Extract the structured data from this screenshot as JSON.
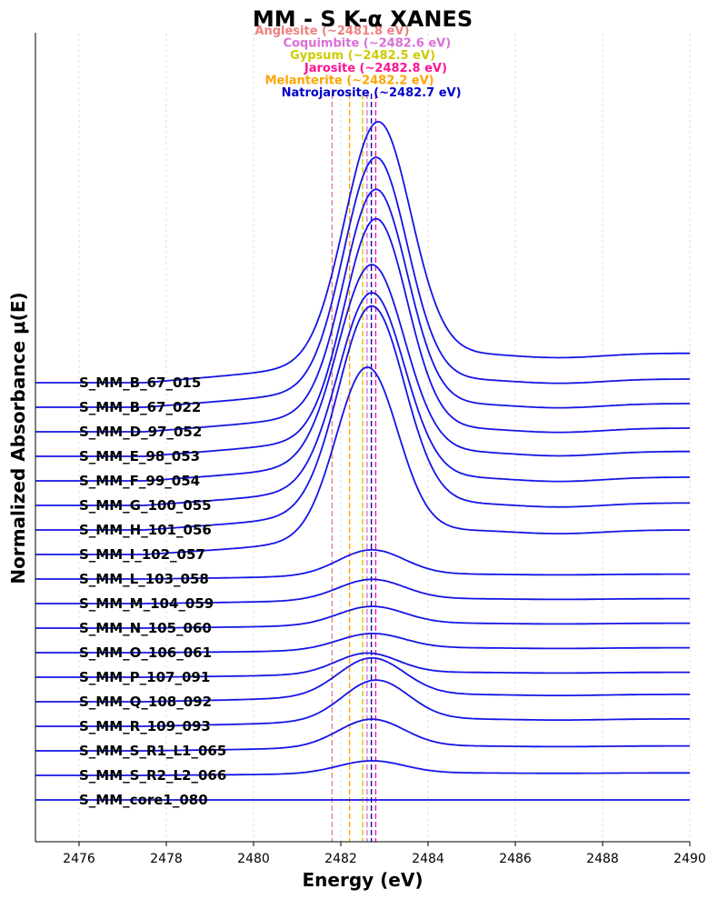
{
  "chart_data": {
    "type": "line",
    "title": "MM - S K-α XANES",
    "xlabel": "Energy (eV)",
    "ylabel": "Normalized Absorbance μ(E)",
    "xlim": [
      2475,
      2490
    ],
    "xticks": [
      2476,
      2478,
      2480,
      2482,
      2484,
      2486,
      2488,
      2490
    ],
    "grid": "vertical",
    "line_color": "#1515e6",
    "reference_lines": [
      {
        "label": "Anglesite (~2481.8 eV)",
        "energy": 2481.8,
        "color": "#f08080"
      },
      {
        "label": "Coquimbite (~2482.6 eV)",
        "energy": 2482.6,
        "color": "#da70d6"
      },
      {
        "label": "Gypsum (~2482.5 eV)",
        "energy": 2482.5,
        "color": "#cccc00"
      },
      {
        "label": "Jarosite (~2482.8 eV)",
        "energy": 2482.8,
        "color": "#ff1493"
      },
      {
        "label": "Melanterite (~2482.2 eV)",
        "energy": 2482.2,
        "color": "#ffa500"
      },
      {
        "label": "Natrojarosite (~2482.7 eV)",
        "energy": 2482.7,
        "color": "#0000cd"
      }
    ],
    "series": [
      {
        "name": "S_MM_B_67_015",
        "offset": 16,
        "peak": 9.5,
        "center": 2482.85,
        "width": 0.75,
        "pre": 0.6,
        "post": 1.2
      },
      {
        "name": "S_MM_B_67_022",
        "offset": 15,
        "peak": 9.1,
        "center": 2482.8,
        "width": 0.72,
        "pre": 0.55,
        "post": 1.15
      },
      {
        "name": "S_MM_D_97_052",
        "offset": 14,
        "peak": 8.8,
        "center": 2482.8,
        "width": 0.72,
        "pre": 0.55,
        "post": 1.15
      },
      {
        "name": "S_MM_E_98_053",
        "offset": 13,
        "peak": 8.6,
        "center": 2482.8,
        "width": 0.72,
        "pre": 0.55,
        "post": 1.15
      },
      {
        "name": "S_MM_F_99_054",
        "offset": 12,
        "peak": 7.7,
        "center": 2482.7,
        "width": 0.75,
        "pre": 0.5,
        "post": 1.2
      },
      {
        "name": "S_MM_G_100_055",
        "offset": 11,
        "peak": 7.6,
        "center": 2482.7,
        "width": 0.75,
        "pre": 0.5,
        "post": 1.15
      },
      {
        "name": "S_MM_H_101_056",
        "offset": 10,
        "peak": 8.1,
        "center": 2482.7,
        "width": 0.75,
        "pre": 0.5,
        "post": 1.1
      },
      {
        "name": "S_MM_I_102_057",
        "offset": 9,
        "peak": 6.7,
        "center": 2482.6,
        "width": 0.7,
        "pre": 0.45,
        "post": 1.0
      },
      {
        "name": "S_MM_L_103_058",
        "offset": 8,
        "peak": 1.0,
        "center": 2482.7,
        "width": 0.75,
        "pre": 0.1,
        "post": 0.2
      },
      {
        "name": "S_MM_M_104_059",
        "offset": 7,
        "peak": 0.8,
        "center": 2482.7,
        "width": 0.75,
        "pre": 0.1,
        "post": 0.2
      },
      {
        "name": "S_MM_N_105_060",
        "offset": 6,
        "peak": 0.7,
        "center": 2482.7,
        "width": 0.75,
        "pre": 0.08,
        "post": 0.2
      },
      {
        "name": "S_MM_O_106_061",
        "offset": 5,
        "peak": 0.6,
        "center": 2482.7,
        "width": 0.75,
        "pre": 0.06,
        "post": 0.2
      },
      {
        "name": "S_MM_P_107_091",
        "offset": 4,
        "peak": 0.8,
        "center": 2482.6,
        "width": 0.7,
        "pre": 0.08,
        "post": 0.2
      },
      {
        "name": "S_MM_Q_108_092",
        "offset": 3,
        "peak": 1.5,
        "center": 2482.7,
        "width": 0.75,
        "pre": 0.15,
        "post": 0.3
      },
      {
        "name": "S_MM_R_109_093",
        "offset": 2,
        "peak": 1.6,
        "center": 2482.8,
        "width": 0.75,
        "pre": 0.15,
        "post": 0.3
      },
      {
        "name": "S_MM_S_R1_L1_065",
        "offset": 1,
        "peak": 1.1,
        "center": 2482.7,
        "width": 0.75,
        "pre": 0.1,
        "post": 0.2
      },
      {
        "name": "S_MM_S_R2_L2_066",
        "offset": 0,
        "peak": 0.5,
        "center": 2482.7,
        "width": 0.75,
        "pre": 0.05,
        "post": 0.1
      },
      {
        "name": "S_MM_core1_080",
        "offset": -1,
        "peak": 0,
        "center": 2482.7,
        "width": 0.75,
        "pre": 0,
        "post": 0
      }
    ]
  }
}
